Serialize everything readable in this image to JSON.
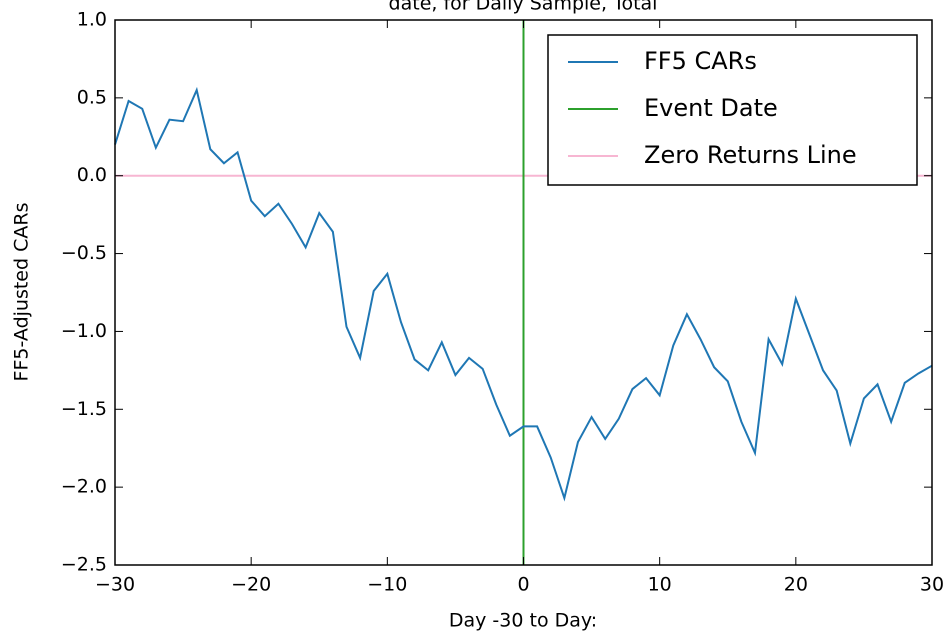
{
  "chart_data": {
    "type": "line",
    "title": "date, for Daily Sample, Total",
    "xlabel": "Day -30 to Day:",
    "ylabel": "FF5-Adjusted CARs",
    "xlim": [
      -30,
      30
    ],
    "ylim": [
      -2.5,
      1.0
    ],
    "xticks": [
      {
        "value": -30,
        "label": "−30"
      },
      {
        "value": -20,
        "label": "−20"
      },
      {
        "value": -10,
        "label": "−10"
      },
      0,
      10,
      20,
      30
    ],
    "yticks": [
      {
        "value": -2.5,
        "label": "−2.5"
      },
      {
        "value": -2.0,
        "label": "−2.0"
      },
      {
        "value": -1.5,
        "label": "−1.5"
      },
      {
        "value": -1.0,
        "label": "−1.0"
      },
      {
        "value": -0.5,
        "label": "−0.5"
      },
      {
        "value": 0.0,
        "label": "0.0"
      },
      {
        "value": 0.5,
        "label": "0.5"
      },
      {
        "value": 1.0,
        "label": "1.0"
      }
    ],
    "grid": false,
    "legend": "upper right",
    "series": [
      {
        "name": "FF5 CARs",
        "color": "#1f77b4",
        "x": [
          -30,
          -29,
          -28,
          -27,
          -26,
          -25,
          -24,
          -23,
          -22,
          -21,
          -20,
          -19,
          -18,
          -17,
          -16,
          -15,
          -14,
          -13,
          -12,
          -11,
          -10,
          -9,
          -8,
          -7,
          -6,
          -5,
          -4,
          -3,
          -2,
          -1,
          0,
          1,
          2,
          3,
          4,
          5,
          6,
          7,
          8,
          9,
          10,
          11,
          12,
          13,
          14,
          15,
          16,
          17,
          18,
          19,
          20,
          21,
          22,
          23,
          24,
          25,
          26,
          27,
          28,
          29,
          30
        ],
        "values": [
          0.2,
          0.48,
          0.43,
          0.18,
          0.36,
          0.35,
          0.55,
          0.17,
          0.08,
          0.15,
          -0.16,
          -0.26,
          -0.18,
          -0.31,
          -0.46,
          -0.24,
          -0.36,
          -0.97,
          -1.17,
          -0.74,
          -0.63,
          -0.94,
          -1.18,
          -1.25,
          -1.07,
          -1.28,
          -1.17,
          -1.24,
          -1.47,
          -1.67,
          -1.61,
          -1.61,
          -1.81,
          -2.07,
          -1.71,
          -1.55,
          -1.69,
          -1.56,
          -1.37,
          -1.3,
          -1.41,
          -1.09,
          -0.89,
          -1.05,
          -1.23,
          -1.32,
          -1.58,
          -1.78,
          -1.05,
          -1.21,
          -0.79,
          -1.02,
          -1.25,
          -1.38,
          -1.72,
          -1.43,
          -1.34,
          -1.58,
          -1.33,
          -1.27,
          -1.22
        ]
      },
      {
        "name": "Event Date",
        "color": "#2ca02c",
        "x": [
          0,
          0
        ],
        "values": [
          -2.5,
          1.0
        ]
      },
      {
        "name": "Zero Returns Line",
        "color": "#f7b6d2",
        "x": [
          -30,
          30
        ],
        "values": [
          0,
          0
        ]
      }
    ]
  }
}
